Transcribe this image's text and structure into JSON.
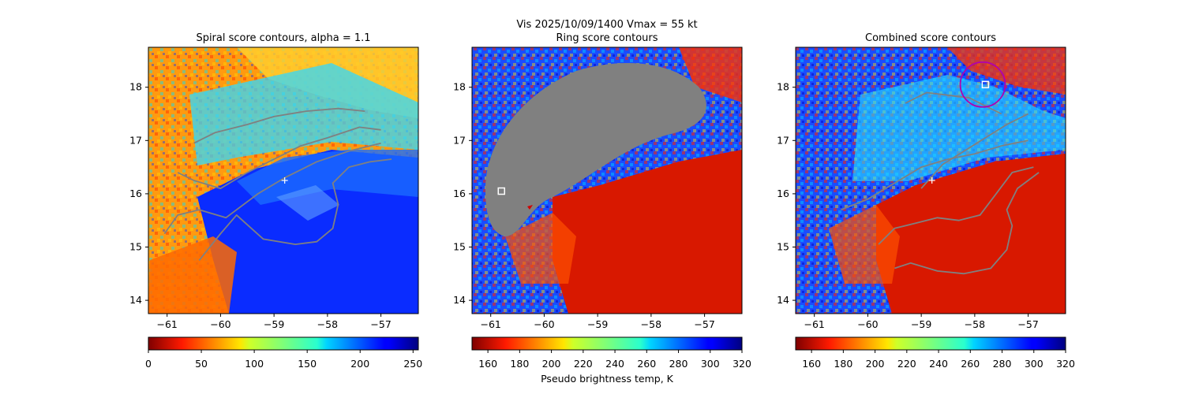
{
  "suptitle": {
    "line1": "Vis  2025/10/09/1400    Vmax = 55 kt"
  },
  "panels": [
    {
      "title": "Spiral score contours, alpha =  1.1"
    },
    {
      "title": "Ring score contours"
    },
    {
      "title": "Combined score contours"
    }
  ],
  "colorbar_label": "Pseudo brightness temp, K",
  "chart_data": [
    {
      "type": "heatmap",
      "title": "Spiral score contours, alpha =  1.1",
      "xlim": [
        -61.35,
        -56.3
      ],
      "ylim": [
        13.75,
        18.75
      ],
      "xticks": [
        -61,
        -60,
        -59,
        -58,
        -57
      ],
      "yticks": [
        14,
        15,
        16,
        17,
        18
      ],
      "colormap": "jet",
      "colorbar": {
        "range": [
          0,
          255
        ],
        "ticks": [
          0,
          50,
          100,
          150,
          200,
          250
        ],
        "reversed": true
      },
      "center_marker": {
        "x": -58.8,
        "y": 16.25
      },
      "contours": [
        [
          [
            -60.5,
            16.95
          ],
          [
            -60.1,
            17.15
          ],
          [
            -59.5,
            17.3
          ],
          [
            -59.0,
            17.45
          ],
          [
            -58.4,
            17.55
          ],
          [
            -57.8,
            17.6
          ],
          [
            -57.3,
            17.55
          ]
        ],
        [
          [
            -60.8,
            16.4
          ],
          [
            -60.5,
            16.25
          ],
          [
            -60.0,
            16.1
          ],
          [
            -59.5,
            16.4
          ],
          [
            -59.0,
            16.65
          ],
          [
            -58.5,
            16.9
          ],
          [
            -58.0,
            17.05
          ],
          [
            -57.4,
            17.25
          ],
          [
            -57.0,
            17.2
          ]
        ],
        [
          [
            -61.05,
            15.25
          ],
          [
            -60.8,
            15.6
          ],
          [
            -60.4,
            15.7
          ],
          [
            -59.9,
            15.55
          ],
          [
            -59.3,
            16.0
          ],
          [
            -58.8,
            16.3
          ],
          [
            -58.2,
            16.6
          ],
          [
            -57.6,
            16.8
          ],
          [
            -57.0,
            16.95
          ]
        ],
        [
          [
            -60.4,
            14.75
          ],
          [
            -60.0,
            15.25
          ],
          [
            -59.7,
            15.6
          ],
          [
            -59.2,
            15.15
          ],
          [
            -58.6,
            15.05
          ],
          [
            -58.2,
            15.1
          ],
          [
            -57.9,
            15.35
          ],
          [
            -57.8,
            15.8
          ],
          [
            -57.9,
            16.2
          ],
          [
            -57.6,
            16.5
          ],
          [
            -57.2,
            16.6
          ],
          [
            -56.8,
            16.65
          ]
        ]
      ]
    },
    {
      "type": "heatmap",
      "title": "Ring score contours",
      "xlim": [
        -61.35,
        -56.3
      ],
      "ylim": [
        13.75,
        18.75
      ],
      "xticks": [
        -61,
        -60,
        -59,
        -58,
        -57
      ],
      "yticks": [
        14,
        15,
        16,
        17,
        18
      ],
      "colormap": "jet",
      "colorbar": {
        "range": [
          150,
          320
        ],
        "ticks": [
          160,
          180,
          200,
          220,
          240,
          260,
          280,
          300,
          320
        ],
        "reversed": false
      },
      "masked_region_color": "#808080",
      "center_marker": {
        "x": -60.8,
        "y": 16.05
      }
    },
    {
      "type": "heatmap",
      "title": "Combined score contours",
      "xlim": [
        -61.35,
        -56.3
      ],
      "ylim": [
        13.75,
        18.75
      ],
      "xticks": [
        -61,
        -60,
        -59,
        -58,
        -57
      ],
      "yticks": [
        14,
        15,
        16,
        17,
        18
      ],
      "colormap": "jet",
      "colorbar": {
        "range": [
          150,
          320
        ],
        "ticks": [
          160,
          180,
          200,
          220,
          240,
          260,
          280,
          300,
          320
        ],
        "reversed": false
      },
      "center_marker": {
        "x": -58.8,
        "y": 16.25
      },
      "square_marker": {
        "x": -57.8,
        "y": 18.05
      },
      "ring": {
        "x": -57.85,
        "y": 18.05,
        "r": 0.42,
        "color": "#b000b0"
      },
      "contours": [
        [
          [
            -59.3,
            17.7
          ],
          [
            -58.9,
            17.9
          ],
          [
            -58.5,
            17.85
          ],
          [
            -58.1,
            17.8
          ],
          [
            -57.8,
            17.65
          ],
          [
            -57.5,
            17.5
          ]
        ],
        [
          [
            -59.0,
            16.1
          ],
          [
            -58.6,
            16.55
          ],
          [
            -58.2,
            16.8
          ],
          [
            -57.8,
            17.05
          ],
          [
            -57.4,
            17.3
          ],
          [
            -57.0,
            17.5
          ]
        ],
        [
          [
            -60.5,
            15.7
          ],
          [
            -60.0,
            15.9
          ],
          [
            -59.5,
            16.2
          ],
          [
            -59.0,
            16.5
          ],
          [
            -58.5,
            16.65
          ],
          [
            -58.0,
            16.75
          ],
          [
            -57.5,
            16.9
          ],
          [
            -57.0,
            17.0
          ]
        ],
        [
          [
            -59.8,
            15.05
          ],
          [
            -59.5,
            15.35
          ],
          [
            -59.1,
            15.45
          ],
          [
            -58.7,
            15.55
          ],
          [
            -58.3,
            15.5
          ],
          [
            -57.9,
            15.6
          ],
          [
            -57.6,
            16.0
          ],
          [
            -57.3,
            16.4
          ],
          [
            -56.9,
            16.5
          ]
        ],
        [
          [
            -59.5,
            14.6
          ],
          [
            -59.2,
            14.7
          ],
          [
            -58.7,
            14.55
          ],
          [
            -58.2,
            14.5
          ],
          [
            -57.7,
            14.6
          ],
          [
            -57.4,
            14.95
          ],
          [
            -57.3,
            15.4
          ],
          [
            -57.4,
            15.7
          ],
          [
            -57.2,
            16.1
          ],
          [
            -56.8,
            16.4
          ]
        ]
      ]
    }
  ]
}
